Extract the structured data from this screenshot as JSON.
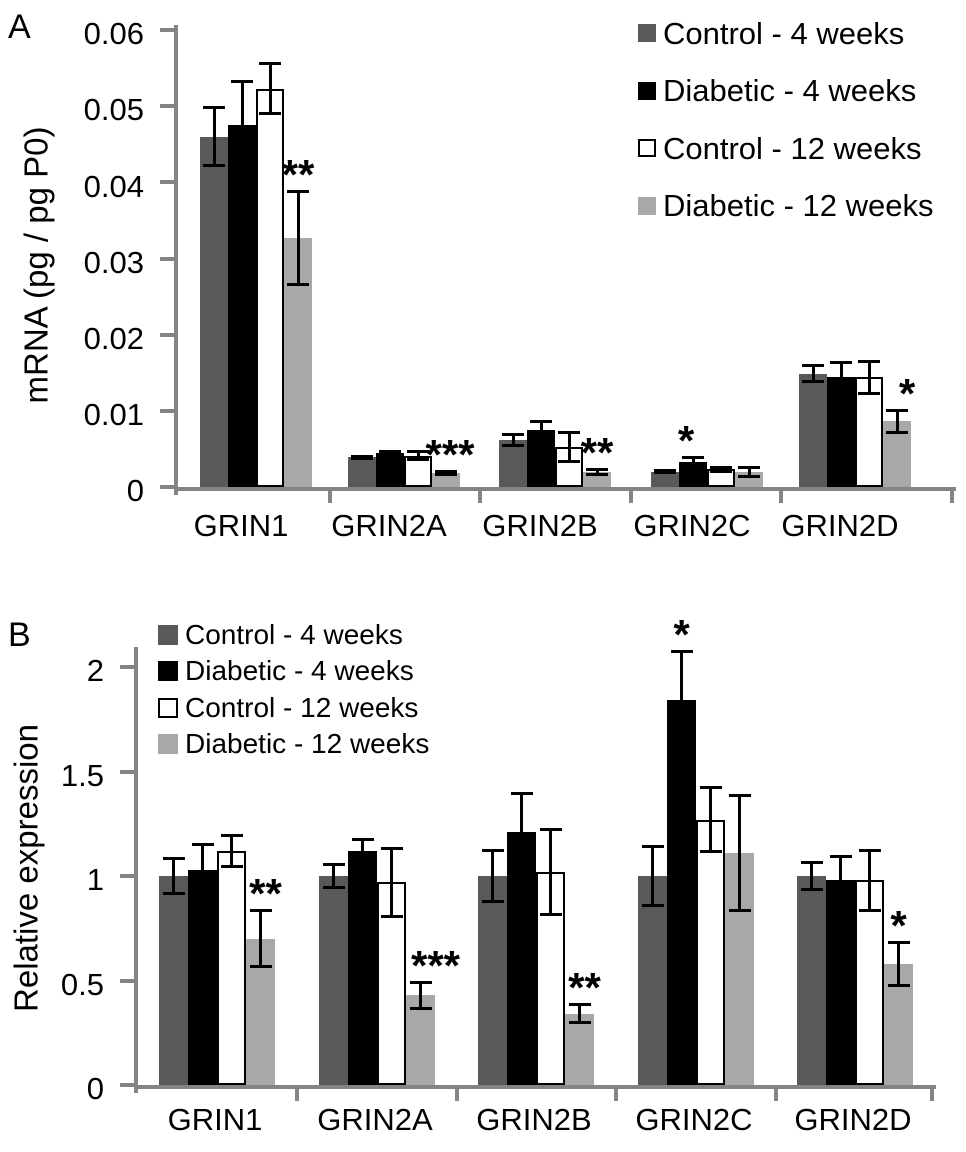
{
  "figure_title": "",
  "colors": {
    "axis": "#848484",
    "text": "#000000",
    "error_bar": "#000000",
    "background": "#ffffff"
  },
  "chart_data": [
    {
      "type": "bar",
      "panel_label": "A",
      "ylabel": "mRNA (pg / pg P0)",
      "xlabel": "",
      "ylim": [
        0,
        0.06
      ],
      "ytick_step": 0.01,
      "ytick_labels": [
        "0",
        "0.01",
        "0.02",
        "0.03",
        "0.04",
        "0.05",
        "0.06"
      ],
      "grid": false,
      "legend_position": "top-right",
      "categories": [
        "GRIN1",
        "GRIN2A",
        "GRIN2B",
        "GRIN2C",
        "GRIN2D"
      ],
      "series": [
        {
          "name": "Control - 4 weeks",
          "color": "#595959",
          "values": [
            0.046,
            0.0039,
            0.0062,
            0.002,
            0.0149
          ],
          "errors": [
            0.004,
            0.0003,
            0.0009,
            0.0003,
            0.0013
          ]
        },
        {
          "name": "Diabetic - 4 weeks",
          "color": "#000000",
          "values": [
            0.0475,
            0.0045,
            0.0075,
            0.0033,
            0.0145
          ],
          "errors": [
            0.006,
            0.0004,
            0.0013,
            0.0008,
            0.002
          ]
        },
        {
          "name": "Control - 12 weeks",
          "color": "#ffffff",
          "values": [
            0.0523,
            0.0041,
            0.0053,
            0.0023,
            0.0144
          ],
          "errors": [
            0.0035,
            0.0007,
            0.0021,
            0.0005,
            0.0023
          ]
        },
        {
          "name": "Diabetic - 12 weeks",
          "color": "#a8a8a8",
          "values": [
            0.0327,
            0.0018,
            0.002,
            0.002,
            0.0086
          ],
          "errors": [
            0.0063,
            0.0004,
            0.0005,
            0.0008,
            0.0017
          ]
        }
      ],
      "significance": [
        {
          "category": "GRIN1",
          "series_index": 3,
          "label": "**",
          "dx": 0
        },
        {
          "category": "GRIN2A",
          "series_index": 3,
          "label": "***",
          "dx": 4
        },
        {
          "category": "GRIN2B",
          "series_index": 3,
          "label": "**",
          "dx": 0
        },
        {
          "category": "GRIN2C",
          "series_index": 1,
          "label": "*",
          "dx": -7
        },
        {
          "category": "GRIN2D",
          "series_index": 3,
          "label": "*",
          "dx": 10
        }
      ]
    },
    {
      "type": "bar",
      "panel_label": "B",
      "ylabel": "Relative expression",
      "xlabel": "",
      "ylim": [
        0,
        2
      ],
      "ytick_step": 0.5,
      "ytick_labels": [
        "0",
        "0.5",
        "1",
        "1.5",
        "2"
      ],
      "grid": false,
      "legend_position": "top-left",
      "categories": [
        "GRIN1",
        "GRIN2A",
        "GRIN2B",
        "GRIN2C",
        "GRIN2D"
      ],
      "series": [
        {
          "name": "Control - 4 weeks",
          "color": "#595959",
          "values": [
            1.0,
            1.0,
            1.0,
            1.0,
            1.0
          ],
          "errors": [
            0.09,
            0.06,
            0.13,
            0.15,
            0.07
          ]
        },
        {
          "name": "Diabetic - 4 weeks",
          "color": "#000000",
          "values": [
            1.03,
            1.12,
            1.21,
            1.84,
            0.98
          ],
          "errors": [
            0.13,
            0.06,
            0.19,
            0.24,
            0.12
          ]
        },
        {
          "name": "Control - 12 weeks",
          "color": "#ffffff",
          "values": [
            1.12,
            0.97,
            1.02,
            1.27,
            0.98
          ],
          "errors": [
            0.08,
            0.17,
            0.21,
            0.16,
            0.15
          ]
        },
        {
          "name": "Diabetic - 12 weeks",
          "color": "#a8a8a8",
          "values": [
            0.7,
            0.43,
            0.34,
            1.11,
            0.58
          ],
          "errors": [
            0.14,
            0.07,
            0.05,
            0.28,
            0.11
          ]
        }
      ],
      "significance": [
        {
          "category": "GRIN1",
          "series_index": 3,
          "label": "**",
          "dx": 5
        },
        {
          "category": "GRIN2A",
          "series_index": 3,
          "label": "***",
          "dx": 15
        },
        {
          "category": "GRIN2B",
          "series_index": 3,
          "label": "**",
          "dx": 5
        },
        {
          "category": "GRIN2C",
          "series_index": 1,
          "label": "*",
          "dx": 0
        },
        {
          "category": "GRIN2D",
          "series_index": 3,
          "label": "*",
          "dx": 0
        }
      ]
    }
  ]
}
